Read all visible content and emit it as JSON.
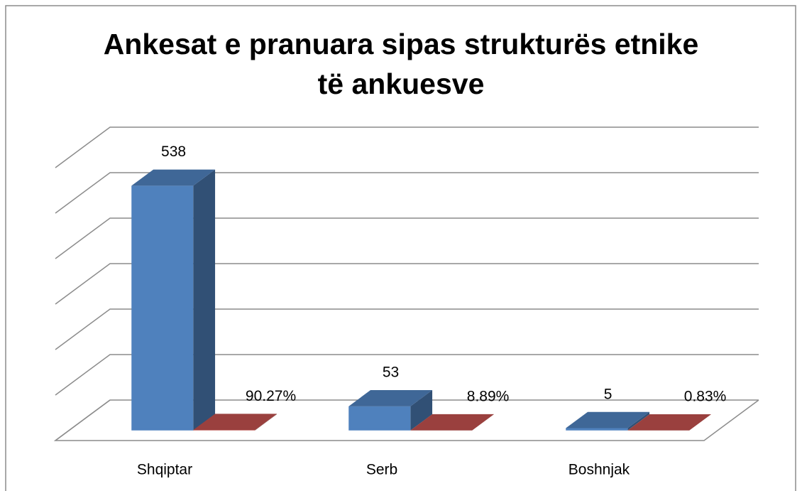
{
  "chart_data": {
    "type": "bar3d",
    "title": "Ankesat e pranuara sipas strukturës etnike të ankuesve",
    "categories": [
      "Shqiptar",
      "Serb",
      "Boshnjak"
    ],
    "series": [
      {
        "color": "#4f81bd",
        "values": [
          538,
          53,
          5
        ]
      },
      {
        "color": "#c0504d",
        "values": [
          0.9027,
          0.0889,
          0.0083
        ],
        "value_labels": [
          "90.27%",
          "8.89%",
          "0.83%"
        ]
      }
    ],
    "ylim": [
      0,
      600
    ],
    "yticks": [
      0,
      100,
      200,
      300,
      400,
      500,
      600
    ],
    "grid": true
  }
}
